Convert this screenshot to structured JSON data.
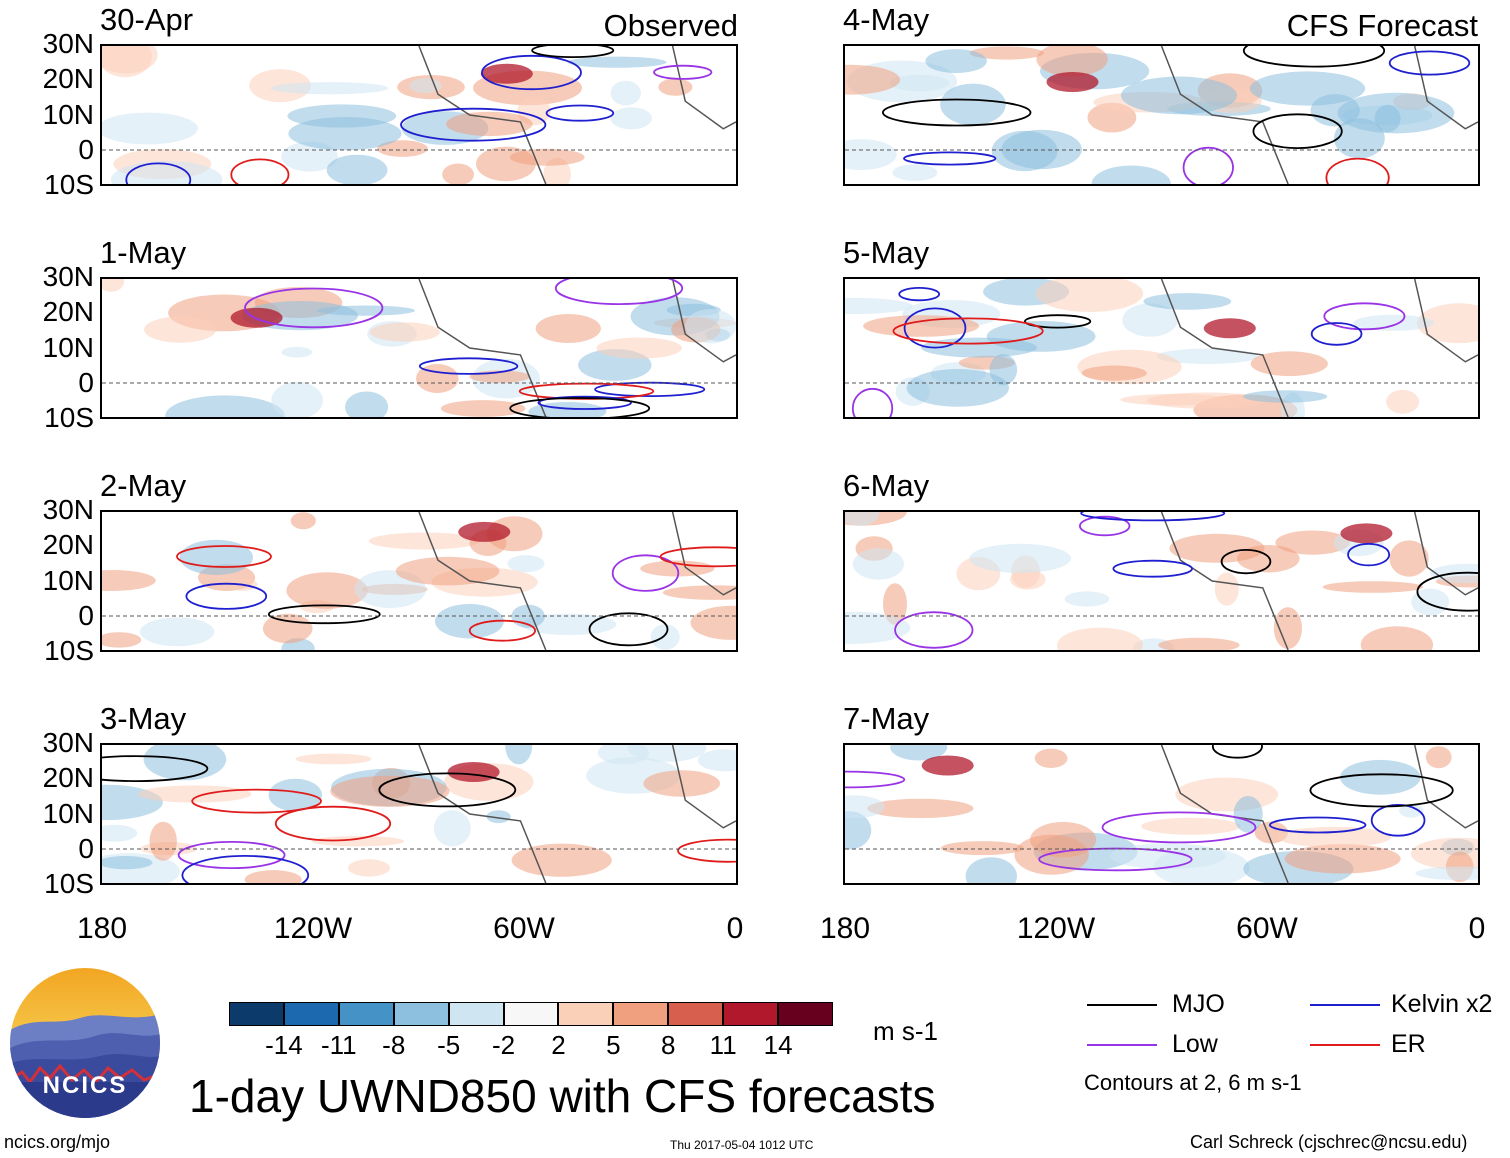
{
  "panels": [
    {
      "date": "30-Apr",
      "tag": "Observed"
    },
    {
      "date": "1-May",
      "tag": ""
    },
    {
      "date": "2-May",
      "tag": ""
    },
    {
      "date": "3-May",
      "tag": ""
    },
    {
      "date": "4-May",
      "tag": "CFS Forecast"
    },
    {
      "date": "5-May",
      "tag": ""
    },
    {
      "date": "6-May",
      "tag": ""
    },
    {
      "date": "7-May",
      "tag": ""
    }
  ],
  "lat_labels": [
    "30N",
    "20N",
    "10N",
    "0",
    "10S"
  ],
  "lon_labels": [
    "180",
    "120W",
    "60W",
    "0"
  ],
  "colorbar": {
    "ticks": [
      "-14",
      "-11",
      "-8",
      "-5",
      "-2",
      "2",
      "5",
      "8",
      "11",
      "14"
    ],
    "colors": [
      "#0b3a6b",
      "#1d69b0",
      "#4592c6",
      "#8cc0de",
      "#cfe5f2",
      "#f7f7f7",
      "#fbd0b9",
      "#f1a07f",
      "#d6604d",
      "#b2182b",
      "#67001f"
    ],
    "units": "m s-1"
  },
  "title": "1-day UWND850 with CFS forecasts",
  "legend": {
    "items": [
      {
        "label": "MJO",
        "color": "#000000"
      },
      {
        "label": "Kelvin x2",
        "color": "#1f1fd0"
      },
      {
        "label": "Low",
        "color": "#9933e6"
      },
      {
        "label": "ER",
        "color": "#e01b1b"
      }
    ],
    "note": "Contours at 2, 6 m s-1"
  },
  "logo": {
    "text": "NCICS"
  },
  "footer": {
    "left": "ncics.org/mjo",
    "center": "Thu 2017-05-04 1012 UTC",
    "right": "Carl Schreck (cjschrec@ncsu.edu)"
  }
}
